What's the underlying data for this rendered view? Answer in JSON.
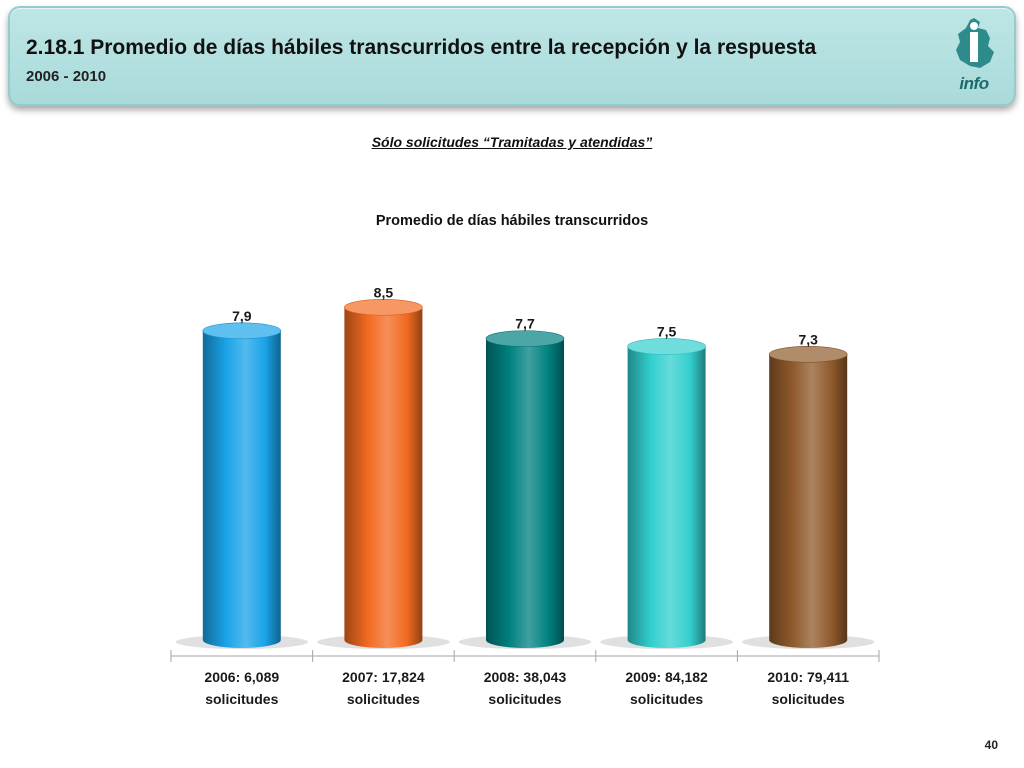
{
  "header": {
    "title": "2.18.1 Promedio de días hábiles transcurridos entre la recepción y la respuesta",
    "subtitle": "2006 - 2010",
    "logo_text": "info"
  },
  "note": "Sólo solicitudes “Tramitadas y atendidas”",
  "page_number": "40",
  "chart_data": {
    "type": "bar",
    "title": "Promedio de días hábiles transcurridos",
    "categories": [
      [
        "2006: 6,089",
        "solicitudes"
      ],
      [
        "2007: 17,824",
        "solicitudes"
      ],
      [
        "2008: 38,043",
        "solicitudes"
      ],
      [
        "2009: 84,182",
        "solicitudes"
      ],
      [
        "2010: 79,411",
        "solicitudes"
      ]
    ],
    "values": [
      7.9,
      8.5,
      7.7,
      7.5,
      7.3
    ],
    "data_labels": [
      "7,9",
      "8,5",
      "7,7",
      "7,5",
      "7,3"
    ],
    "colors": [
      "#1aa3e8",
      "#f26a21",
      "#008080",
      "#33cfcf",
      "#8f5a2b"
    ],
    "ylim": [
      0,
      9.3
    ],
    "grid": false,
    "legend": "none"
  }
}
